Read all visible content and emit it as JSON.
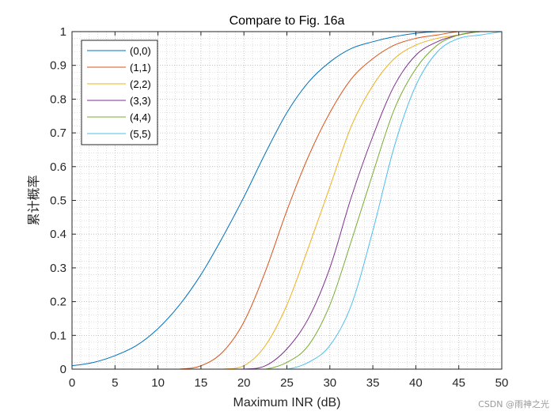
{
  "chart_data": {
    "type": "line",
    "title": "Compare to Fig. 16a",
    "xlabel": "Maximum INR (dB)",
    "ylabel": "累计概率",
    "xlim": [
      0,
      50
    ],
    "ylim": [
      0,
      1
    ],
    "x_ticks": [
      0,
      5,
      10,
      15,
      20,
      25,
      30,
      35,
      40,
      45,
      50
    ],
    "y_ticks": [
      0,
      0.1,
      0.2,
      0.3,
      0.4,
      0.5,
      0.6,
      0.7,
      0.8,
      0.9,
      1
    ],
    "y_tick_labels": [
      "0",
      "0.1",
      "0.2",
      "0.3",
      "0.4",
      "0.5",
      "0.6",
      "0.7",
      "0.8",
      "0.9",
      "1"
    ],
    "grid": "major and minor, dotted",
    "legend_position": "top-left",
    "x": [
      0,
      2.5,
      5,
      7.5,
      10,
      12.5,
      15,
      17.5,
      20,
      22.5,
      25,
      27.5,
      30,
      32.5,
      35,
      37.5,
      40,
      42.5,
      45,
      47.5,
      50
    ],
    "series": [
      {
        "name": "(0,0)",
        "color": "#0072BD",
        "values": [
          0.01,
          0.02,
          0.04,
          0.07,
          0.12,
          0.19,
          0.28,
          0.39,
          0.51,
          0.64,
          0.76,
          0.85,
          0.91,
          0.95,
          0.97,
          0.985,
          0.995,
          1.0,
          1.0,
          1.0,
          1.0
        ]
      },
      {
        "name": "(1,1)",
        "color": "#D95319",
        "values": [
          0,
          0,
          0,
          0,
          0,
          0,
          0.01,
          0.05,
          0.14,
          0.29,
          0.47,
          0.63,
          0.76,
          0.86,
          0.92,
          0.96,
          0.98,
          0.99,
          1.0,
          1.0,
          1.0
        ]
      },
      {
        "name": "(2,2)",
        "color": "#EDB120",
        "values": [
          0,
          0,
          0,
          0,
          0,
          0,
          0,
          0,
          0.01,
          0.07,
          0.19,
          0.36,
          0.54,
          0.72,
          0.84,
          0.92,
          0.96,
          0.98,
          0.99,
          1.0,
          1.0
        ]
      },
      {
        "name": "(3,3)",
        "color": "#7E2F8E",
        "values": [
          0,
          0,
          0,
          0,
          0,
          0,
          0,
          0,
          0,
          0.01,
          0.06,
          0.15,
          0.3,
          0.51,
          0.69,
          0.84,
          0.93,
          0.97,
          0.99,
          1.0,
          1.0
        ]
      },
      {
        "name": "(4,4)",
        "color": "#77AC30",
        "values": [
          0,
          0,
          0,
          0,
          0,
          0,
          0,
          0,
          0,
          0,
          0.02,
          0.07,
          0.19,
          0.38,
          0.58,
          0.77,
          0.89,
          0.96,
          0.99,
          1.0,
          1.0
        ]
      },
      {
        "name": "(5,5)",
        "color": "#4DBEEE",
        "values": [
          0,
          0,
          0,
          0,
          0,
          0,
          0,
          0,
          0,
          0,
          0,
          0.02,
          0.07,
          0.19,
          0.41,
          0.66,
          0.84,
          0.94,
          0.98,
          0.99,
          1.0
        ]
      }
    ]
  },
  "watermark": "CSDN @雨神之光"
}
